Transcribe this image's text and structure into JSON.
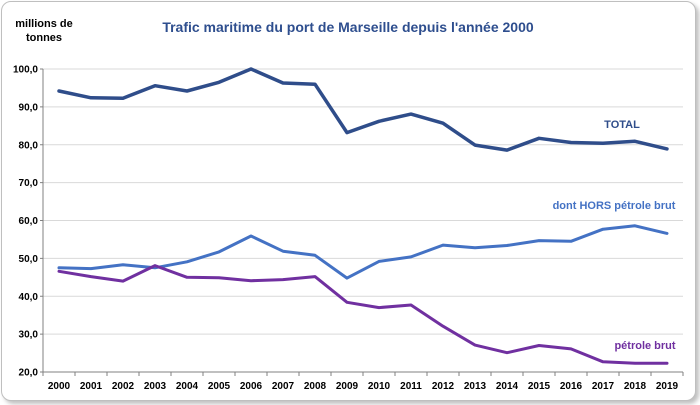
{
  "chart_data": {
    "type": "line",
    "title": "Trafic maritime du port de Marseille depuis l'année 2000",
    "ylabel": "millions de tonnes",
    "ylabel_line1": "millions de",
    "ylabel_line2": "tonnes",
    "xlabel": "",
    "ylim": [
      20,
      100
    ],
    "yticks": [
      "20,0",
      "30,0",
      "40,0",
      "50,0",
      "60,0",
      "70,0",
      "80,0",
      "90,0",
      "100,0"
    ],
    "ytick_values": [
      20,
      30,
      40,
      50,
      60,
      70,
      80,
      90,
      100
    ],
    "categories": [
      "2000",
      "2001",
      "2002",
      "2003",
      "2004",
      "2005",
      "2006",
      "2007",
      "2008",
      "2009",
      "2010",
      "2011",
      "2012",
      "2013",
      "2014",
      "2015",
      "2016",
      "2017",
      "2018",
      "2019"
    ],
    "grid": true,
    "series": [
      {
        "name": "TOTAL",
        "color": "#2f4d8a",
        "values": [
          94.2,
          92.4,
          92.3,
          95.6,
          94.2,
          96.5,
          100.0,
          96.3,
          96.0,
          83.2,
          86.2,
          88.1,
          85.7,
          79.9,
          78.6,
          81.7,
          80.6,
          80.4,
          80.9,
          78.9
        ]
      },
      {
        "name": "dont HORS pétrole brut",
        "color": "#4472c4",
        "values": [
          47.5,
          47.3,
          48.3,
          47.5,
          49.1,
          51.7,
          55.9,
          51.9,
          50.8,
          44.8,
          49.2,
          50.4,
          53.5,
          52.8,
          53.4,
          54.7,
          54.5,
          57.7,
          58.6,
          56.6
        ]
      },
      {
        "name": "pétrole brut",
        "color": "#7030a0",
        "values": [
          46.6,
          45.2,
          44.0,
          48.1,
          45.0,
          44.9,
          44.1,
          44.4,
          45.2,
          38.4,
          37.0,
          37.7,
          32.1,
          27.1,
          25.1,
          27.0,
          26.1,
          22.7,
          22.3,
          22.3
        ]
      }
    ]
  }
}
